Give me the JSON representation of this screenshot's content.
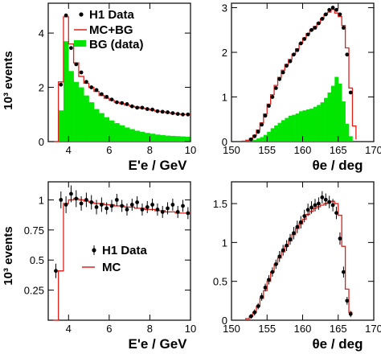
{
  "colors": {
    "data": "#000000",
    "mc": "#e0201b",
    "bg": "#00e600"
  },
  "chart_data": [
    {
      "type": "line",
      "panel": "top-left",
      "xlabel": "E'e / GeV",
      "ylabel": "10³ events",
      "xlim": [
        3,
        10
      ],
      "ylim": [
        0,
        5.1
      ],
      "xticks": [
        4,
        6,
        8,
        10
      ],
      "yticks": [
        0,
        2,
        4
      ],
      "legend": {
        "position": "top-right",
        "entries": [
          "H1 Data",
          "MC+BG",
          "BG (data)"
        ]
      },
      "series": [
        {
          "name": "BG (data)",
          "kind": "filled-hist",
          "edges": [
            3.5,
            3.75,
            4.0,
            4.25,
            4.5,
            4.75,
            5.0,
            5.25,
            5.5,
            5.75,
            6.0,
            6.25,
            6.5,
            6.75,
            7.0,
            7.25,
            7.5,
            7.75,
            8.0,
            8.25,
            8.5,
            8.75,
            9.0,
            9.25,
            9.5,
            9.75,
            10.0
          ],
          "values": [
            1.15,
            3.7,
            2.6,
            2.2,
            2.0,
            1.7,
            1.45,
            1.2,
            1.05,
            0.9,
            0.78,
            0.68,
            0.6,
            0.52,
            0.46,
            0.4,
            0.36,
            0.32,
            0.29,
            0.26,
            0.24,
            0.22,
            0.21,
            0.2,
            0.19,
            0.18
          ]
        },
        {
          "name": "MC+BG",
          "kind": "step",
          "edges": [
            3.25,
            3.5,
            3.75,
            4.0,
            4.25,
            4.5,
            4.75,
            5.0,
            5.25,
            5.5,
            5.75,
            6.0,
            6.25,
            6.5,
            6.75,
            7.0,
            7.25,
            7.5,
            7.75,
            8.0,
            8.25,
            8.5,
            8.75,
            9.0,
            9.25,
            9.5,
            9.75,
            10.0
          ],
          "values": [
            0,
            2.2,
            4.6,
            3.6,
            2.9,
            2.4,
            2.15,
            2.0,
            1.85,
            1.7,
            1.6,
            1.52,
            1.45,
            1.4,
            1.35,
            1.3,
            1.27,
            1.23,
            1.2,
            1.16,
            1.12,
            1.1,
            1.07,
            1.04,
            1.02,
            1.0,
            1.0
          ]
        },
        {
          "name": "H1 Data",
          "kind": "points",
          "x": [
            3.625,
            3.875,
            4.125,
            4.375,
            4.625,
            4.875,
            5.125,
            5.375,
            5.625,
            5.875,
            6.125,
            6.375,
            6.625,
            6.875,
            7.125,
            7.375,
            7.625,
            7.875,
            8.125,
            8.375,
            8.625,
            8.875,
            9.125,
            9.375,
            9.625,
            9.875
          ],
          "y": [
            2.1,
            4.65,
            3.45,
            2.85,
            2.55,
            2.2,
            2.0,
            1.9,
            1.75,
            1.65,
            1.55,
            1.45,
            1.42,
            1.38,
            1.3,
            1.25,
            1.25,
            1.2,
            1.18,
            1.12,
            1.1,
            1.08,
            1.05,
            1.02,
            1.0,
            1.0
          ]
        }
      ]
    },
    {
      "type": "line",
      "panel": "top-right",
      "xlabel": "θe / deg",
      "ylabel": "",
      "xlim": [
        150,
        170
      ],
      "ylim": [
        0,
        3.1
      ],
      "xticks": [
        150,
        155,
        160,
        165,
        170
      ],
      "yticks": [
        0,
        1,
        2,
        3
      ],
      "series": [
        {
          "name": "BG (data)",
          "kind": "filled-hist",
          "edges": [
            152.5,
            153.0,
            153.5,
            154.0,
            154.5,
            155.0,
            155.5,
            156.0,
            156.5,
            157.0,
            157.5,
            158.0,
            158.5,
            159.0,
            159.5,
            160.0,
            160.5,
            161.0,
            161.5,
            162.0,
            162.5,
            163.0,
            163.5,
            164.0,
            164.5,
            165.0,
            165.5,
            166.0,
            166.5,
            167.0
          ],
          "values": [
            0.02,
            0.04,
            0.07,
            0.1,
            0.15,
            0.22,
            0.3,
            0.36,
            0.42,
            0.48,
            0.53,
            0.58,
            0.6,
            0.63,
            0.68,
            0.7,
            0.72,
            0.74,
            0.78,
            0.82,
            0.88,
            0.98,
            1.1,
            1.25,
            1.45,
            1.3,
            0.9,
            0.4,
            0.12,
            0.03
          ]
        },
        {
          "name": "MC+BG",
          "kind": "step",
          "edges": [
            151.5,
            152.0,
            152.5,
            153.0,
            153.5,
            154.0,
            154.5,
            155.0,
            155.5,
            156.0,
            156.5,
            157.0,
            157.5,
            158.0,
            158.5,
            159.0,
            159.5,
            160.0,
            160.5,
            161.0,
            161.5,
            162.0,
            162.5,
            163.0,
            163.5,
            164.0,
            164.5,
            165.0,
            165.5,
            166.0,
            166.5,
            167.0,
            167.5
          ],
          "values": [
            0.01,
            0.03,
            0.07,
            0.14,
            0.26,
            0.42,
            0.62,
            0.84,
            1.05,
            1.26,
            1.44,
            1.6,
            1.73,
            1.84,
            1.96,
            2.08,
            2.2,
            2.32,
            2.42,
            2.5,
            2.58,
            2.66,
            2.75,
            2.85,
            2.9,
            2.96,
            2.88,
            2.8,
            2.6,
            2.1,
            1.2,
            0.35,
            0.05
          ]
        },
        {
          "name": "H1 Data",
          "kind": "points",
          "x": [
            152.75,
            153.25,
            153.75,
            154.25,
            154.75,
            155.25,
            155.75,
            156.25,
            156.75,
            157.25,
            157.75,
            158.25,
            158.75,
            159.25,
            159.75,
            160.25,
            160.75,
            161.25,
            161.75,
            162.25,
            162.75,
            163.25,
            163.75,
            164.25,
            164.75,
            165.25,
            165.75,
            166.25,
            166.75
          ],
          "y": [
            0.05,
            0.12,
            0.22,
            0.38,
            0.58,
            0.8,
            1.0,
            1.2,
            1.4,
            1.55,
            1.7,
            1.8,
            1.95,
            2.05,
            2.2,
            2.3,
            2.4,
            2.5,
            2.55,
            2.65,
            2.75,
            2.85,
            2.95,
            3.0,
            2.95,
            2.85,
            2.55,
            1.95,
            1.1
          ]
        }
      ]
    },
    {
      "type": "line",
      "panel": "bottom-left",
      "xlabel": "E'e / GeV",
      "ylabel": "10³ events",
      "xlim": [
        3,
        10
      ],
      "ylim": [
        0,
        1.15
      ],
      "xticks": [
        4,
        6,
        8,
        10
      ],
      "yticks": [
        0.25,
        0.5,
        0.75,
        1
      ],
      "legend": {
        "position": "bottom-left",
        "entries": [
          "H1 Data",
          "MC"
        ]
      },
      "series": [
        {
          "name": "MC",
          "kind": "step",
          "edges": [
            3.25,
            3.5,
            3.75,
            4.0,
            4.25,
            4.5,
            4.75,
            5.0,
            5.25,
            5.5,
            5.75,
            6.0,
            6.25,
            6.5,
            6.75,
            7.0,
            7.25,
            7.5,
            7.75,
            8.0,
            8.25,
            8.5,
            8.75,
            9.0,
            9.25,
            9.5,
            9.75,
            10.0
          ],
          "values": [
            0,
            0.41,
            0.97,
            1.0,
            1.01,
            1.0,
            0.99,
            0.98,
            0.97,
            0.97,
            0.96,
            0.96,
            0.95,
            0.95,
            0.94,
            0.94,
            0.93,
            0.93,
            0.92,
            0.92,
            0.91,
            0.91,
            0.9,
            0.9,
            0.89,
            0.89,
            0.89
          ]
        },
        {
          "name": "H1 Data",
          "kind": "points",
          "x": [
            3.375,
            3.625,
            3.875,
            4.125,
            4.375,
            4.625,
            4.875,
            5.125,
            5.375,
            5.625,
            5.875,
            6.125,
            6.375,
            6.625,
            6.875,
            7.125,
            7.375,
            7.625,
            7.875,
            8.125,
            8.375,
            8.625,
            8.875,
            9.125,
            9.375,
            9.625,
            9.875
          ],
          "y": [
            0.41,
            1.0,
            0.96,
            1.05,
            1.01,
            0.97,
            1.0,
            0.98,
            0.94,
            0.96,
            0.93,
            0.95,
            1.0,
            0.95,
            0.92,
            0.96,
            0.98,
            0.92,
            0.94,
            0.96,
            0.92,
            0.9,
            0.93,
            0.96,
            0.9,
            0.95,
            0.89
          ],
          "err": [
            0.06,
            0.07,
            0.07,
            0.07,
            0.07,
            0.06,
            0.06,
            0.06,
            0.06,
            0.06,
            0.05,
            0.05,
            0.05,
            0.05,
            0.05,
            0.05,
            0.05,
            0.05,
            0.05,
            0.05,
            0.05,
            0.05,
            0.05,
            0.05,
            0.05,
            0.05,
            0.05
          ]
        }
      ]
    },
    {
      "type": "line",
      "panel": "bottom-right",
      "xlabel": "θe / deg",
      "ylabel": "",
      "xlim": [
        150,
        170
      ],
      "ylim": [
        0,
        1.78
      ],
      "xticks": [
        150,
        155,
        160,
        165,
        170
      ],
      "yticks": [
        0,
        0.5,
        1,
        1.5
      ],
      "series": [
        {
          "name": "MC",
          "kind": "step",
          "edges": [
            152.0,
            152.5,
            153.0,
            153.5,
            154.0,
            154.5,
            155.0,
            155.5,
            156.0,
            156.5,
            157.0,
            157.5,
            158.0,
            158.5,
            159.0,
            159.5,
            160.0,
            160.5,
            161.0,
            161.5,
            162.0,
            162.5,
            163.0,
            163.5,
            164.0,
            164.5,
            165.0,
            165.5,
            166.0,
            166.5,
            167.0
          ],
          "values": [
            0.02,
            0.05,
            0.1,
            0.18,
            0.28,
            0.38,
            0.5,
            0.62,
            0.72,
            0.8,
            0.88,
            0.95,
            1.02,
            1.1,
            1.18,
            1.24,
            1.3,
            1.36,
            1.4,
            1.44,
            1.46,
            1.48,
            1.5,
            1.52,
            1.53,
            1.5,
            1.35,
            0.95,
            0.4,
            0.1
          ]
        },
        {
          "name": "H1 Data",
          "kind": "points",
          "x": [
            152.75,
            153.25,
            153.75,
            154.25,
            154.75,
            155.25,
            155.75,
            156.25,
            156.75,
            157.25,
            157.75,
            158.25,
            158.75,
            159.25,
            159.75,
            160.25,
            160.75,
            161.25,
            161.75,
            162.25,
            162.75,
            163.25,
            163.75,
            164.25,
            164.75,
            165.25,
            165.75,
            166.25,
            166.75
          ],
          "y": [
            0.05,
            0.1,
            0.18,
            0.3,
            0.42,
            0.52,
            0.62,
            0.72,
            0.82,
            0.9,
            0.96,
            1.04,
            1.12,
            1.2,
            1.26,
            1.34,
            1.42,
            1.45,
            1.48,
            1.5,
            1.58,
            1.55,
            1.52,
            1.48,
            1.38,
            1.05,
            0.62,
            0.25,
            0.08
          ],
          "err": [
            0.03,
            0.04,
            0.04,
            0.05,
            0.05,
            0.06,
            0.06,
            0.06,
            0.07,
            0.07,
            0.07,
            0.07,
            0.08,
            0.08,
            0.08,
            0.08,
            0.08,
            0.08,
            0.08,
            0.08,
            0.08,
            0.08,
            0.08,
            0.08,
            0.08,
            0.08,
            0.07,
            0.05,
            0.04
          ]
        }
      ]
    }
  ]
}
